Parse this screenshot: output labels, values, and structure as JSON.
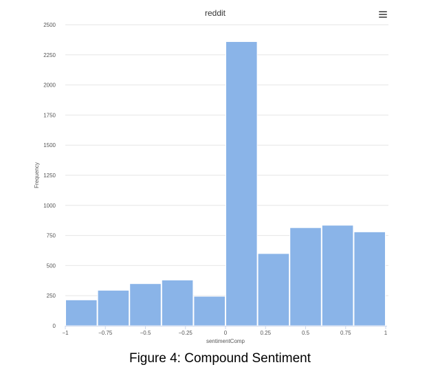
{
  "caption": "Figure 4: Compound Sentiment",
  "colors": {
    "bar": "#8ab4e8",
    "grid": "#e6e6e6",
    "axis": "#ccd6eb",
    "menu": "#666666"
  },
  "menu_icon": "hamburger-menu-icon",
  "chart_data": {
    "type": "bar",
    "title": "reddit",
    "xlabel": "sentimentComp",
    "ylabel": "Frequency",
    "xlim": [
      -1,
      1
    ],
    "ylim": [
      0,
      2500
    ],
    "grid": true,
    "x_ticks": [
      {
        "value": -1,
        "label": "−1"
      },
      {
        "value": -0.75,
        "label": "−0.75"
      },
      {
        "value": -0.5,
        "label": "−0.5"
      },
      {
        "value": -0.25,
        "label": "−0.25"
      },
      {
        "value": 0,
        "label": "0"
      },
      {
        "value": 0.25,
        "label": "0.25"
      },
      {
        "value": 0.5,
        "label": "0.5"
      },
      {
        "value": 0.75,
        "label": "0.75"
      },
      {
        "value": 1,
        "label": "1"
      }
    ],
    "y_ticks": [
      {
        "value": 0,
        "label": "0"
      },
      {
        "value": 250,
        "label": "250"
      },
      {
        "value": 500,
        "label": "500"
      },
      {
        "value": 750,
        "label": "750"
      },
      {
        "value": 1000,
        "label": "1000"
      },
      {
        "value": 1250,
        "label": "1250"
      },
      {
        "value": 1500,
        "label": "1500"
      },
      {
        "value": 1750,
        "label": "1750"
      },
      {
        "value": 2000,
        "label": "2000"
      },
      {
        "value": 2250,
        "label": "2250"
      },
      {
        "value": 2500,
        "label": "2500"
      }
    ],
    "bins": [
      {
        "x0": -1.0,
        "x1": -0.8,
        "value": 215
      },
      {
        "x0": -0.8,
        "x1": -0.6,
        "value": 295
      },
      {
        "x0": -0.6,
        "x1": -0.4,
        "value": 350
      },
      {
        "x0": -0.4,
        "x1": -0.2,
        "value": 380
      },
      {
        "x0": -0.2,
        "x1": 0.0,
        "value": 245
      },
      {
        "x0": 0.0,
        "x1": 0.2,
        "value": 2360
      },
      {
        "x0": 0.2,
        "x1": 0.4,
        "value": 600
      },
      {
        "x0": 0.4,
        "x1": 0.6,
        "value": 815
      },
      {
        "x0": 0.6,
        "x1": 0.8,
        "value": 835
      },
      {
        "x0": 0.8,
        "x1": 1.0,
        "value": 780
      }
    ]
  }
}
